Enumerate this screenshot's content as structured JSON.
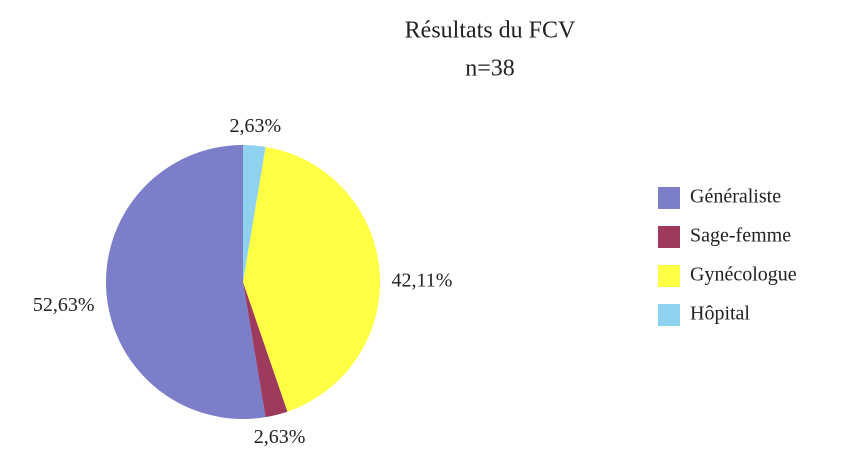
{
  "chart_data": {
    "type": "pie",
    "title": "Résultats du FCV",
    "subtitle": "n=38",
    "categories": [
      "Généraliste",
      "Sage-femme",
      "Gynécologue",
      "Hôpital"
    ],
    "values": [
      52.63,
      2.63,
      42.11,
      2.63
    ],
    "value_labels": [
      "52,63%",
      "2,63%",
      "42,11%",
      "2,63%"
    ],
    "colors": [
      "#7b7fc9",
      "#9e3a5e",
      "#ffff44",
      "#8fd2f0"
    ],
    "legend": "right"
  }
}
